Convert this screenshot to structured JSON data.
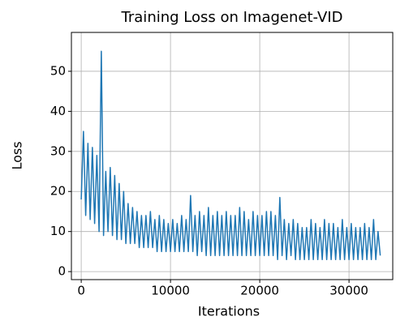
{
  "chart_data": {
    "type": "line",
    "title": "Training Loss on Imagenet-VID",
    "xlabel": "Iterations",
    "ylabel": "Loss",
    "x": [
      0,
      250,
      500,
      750,
      1000,
      1250,
      1500,
      1750,
      2000,
      2250,
      2500,
      2750,
      3000,
      3250,
      3500,
      3750,
      4000,
      4250,
      4500,
      4750,
      5000,
      5250,
      5500,
      5750,
      6000,
      6250,
      6500,
      6750,
      7000,
      7250,
      7500,
      7750,
      8000,
      8250,
      8500,
      8750,
      9000,
      9250,
      9500,
      9750,
      10000,
      10250,
      10500,
      10750,
      11000,
      11250,
      11500,
      11750,
      12000,
      12250,
      12500,
      12750,
      13000,
      13250,
      13500,
      13750,
      14000,
      14250,
      14500,
      14750,
      15000,
      15250,
      15500,
      15750,
      16000,
      16250,
      16500,
      16750,
      17000,
      17250,
      17500,
      17750,
      18000,
      18250,
      18500,
      18750,
      19000,
      19250,
      19500,
      19750,
      20000,
      20250,
      20500,
      20750,
      21000,
      21250,
      21500,
      21750,
      22000,
      22250,
      22500,
      22750,
      23000,
      23250,
      23500,
      23750,
      24000,
      24250,
      24500,
      24750,
      25000,
      25250,
      25500,
      25750,
      26000,
      26250,
      26500,
      26750,
      27000,
      27250,
      27500,
      27750,
      28000,
      28250,
      28500,
      28750,
      29000,
      29250,
      29500,
      29750,
      30000,
      30250,
      30500,
      30750,
      31000,
      31250,
      31500,
      31750,
      32000,
      32250,
      32500,
      32750,
      33000,
      33250,
      33500
    ],
    "series": [
      {
        "name": "loss",
        "color": "#1f77b4",
        "values": [
          18,
          35,
          14,
          32,
          13,
          31,
          12,
          29,
          10,
          55,
          9,
          25,
          10,
          26,
          9,
          24,
          8,
          22,
          8,
          20,
          7,
          17,
          7,
          16,
          7,
          15,
          6,
          14,
          6,
          14,
          6,
          15,
          6,
          13,
          5,
          14,
          5,
          13,
          5,
          12,
          5,
          13,
          5,
          12,
          5,
          14,
          5,
          13,
          5,
          19,
          5,
          14,
          4,
          15,
          5,
          14,
          4,
          16,
          4,
          14,
          4,
          15,
          4,
          14,
          4,
          15,
          4,
          14,
          4,
          14,
          4,
          16,
          4,
          15,
          4,
          13,
          4,
          15,
          4,
          14,
          4,
          14,
          4,
          15,
          4,
          15,
          4,
          14,
          3,
          18.5,
          4,
          13,
          3,
          12,
          4,
          13,
          3,
          12,
          3,
          11,
          3,
          11,
          3,
          13,
          3,
          12,
          3,
          11,
          3,
          13,
          3,
          12,
          3,
          12,
          3,
          11,
          3,
          13,
          3,
          11,
          3,
          12,
          3,
          11,
          3,
          11,
          3,
          12,
          3,
          11,
          3,
          13,
          3,
          10,
          4
        ]
      }
    ],
    "xlim": [
      -1100,
      34900
    ],
    "ylim": [
      -2,
      59.7
    ],
    "xticks": [
      0,
      10000,
      20000,
      30000
    ],
    "yticks": [
      0,
      10,
      20,
      30,
      40,
      50
    ],
    "grid": true
  }
}
